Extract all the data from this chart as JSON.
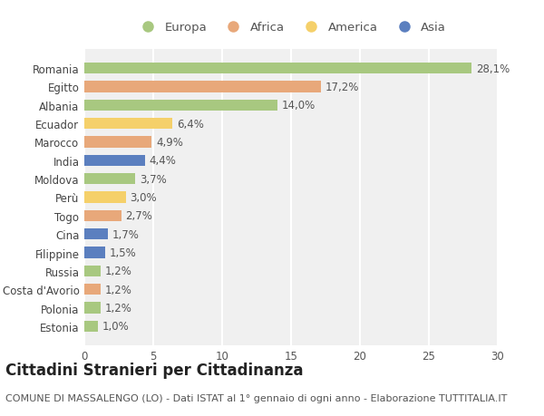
{
  "countries": [
    "Romania",
    "Egitto",
    "Albania",
    "Ecuador",
    "Marocco",
    "India",
    "Moldova",
    "Perù",
    "Togo",
    "Cina",
    "Filippine",
    "Russia",
    "Costa d'Avorio",
    "Polonia",
    "Estonia"
  ],
  "values": [
    28.1,
    17.2,
    14.0,
    6.4,
    4.9,
    4.4,
    3.7,
    3.0,
    2.7,
    1.7,
    1.5,
    1.2,
    1.2,
    1.2,
    1.0
  ],
  "labels": [
    "28,1%",
    "17,2%",
    "14,0%",
    "6,4%",
    "4,9%",
    "4,4%",
    "3,7%",
    "3,0%",
    "2,7%",
    "1,7%",
    "1,5%",
    "1,2%",
    "1,2%",
    "1,2%",
    "1,0%"
  ],
  "continents": [
    "Europa",
    "Africa",
    "Europa",
    "America",
    "Africa",
    "Asia",
    "Europa",
    "America",
    "Africa",
    "Asia",
    "Asia",
    "Europa",
    "Africa",
    "Europa",
    "Europa"
  ],
  "continent_colors": {
    "Europa": "#a8c880",
    "Africa": "#e8a87a",
    "America": "#f5d06a",
    "Asia": "#5b7fbf"
  },
  "legend_order": [
    "Europa",
    "Africa",
    "America",
    "Asia"
  ],
  "legend_colors": [
    "#a8c880",
    "#e8a87a",
    "#f5d06a",
    "#5b7fbf"
  ],
  "title": "Cittadini Stranieri per Cittadinanza",
  "subtitle": "COMUNE DI MASSALENGO (LO) - Dati ISTAT al 1° gennaio di ogni anno - Elaborazione TUTTITALIA.IT",
  "xlim": [
    0,
    30
  ],
  "xticks": [
    0,
    5,
    10,
    15,
    20,
    25,
    30
  ],
  "background_color": "#f0f0f0",
  "bar_alpha": 1.0,
  "grid_color": "#ffffff",
  "label_fontsize": 8.5,
  "tick_fontsize": 8.5,
  "title_fontsize": 12,
  "subtitle_fontsize": 8
}
